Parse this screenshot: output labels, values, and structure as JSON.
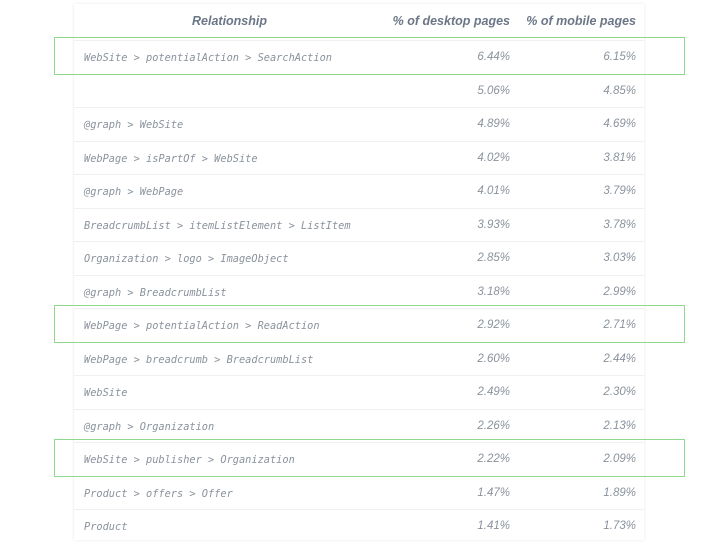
{
  "table": {
    "headers": {
      "relationship": "Relationship",
      "desktop": "% of desktop pages",
      "mobile": "% of mobile pages"
    },
    "rows": [
      {
        "relationship": "WebSite > potentialAction > SearchAction",
        "desktop": "6.44%",
        "mobile": "6.15%",
        "highlighted": true
      },
      {
        "relationship": "",
        "desktop": "5.06%",
        "mobile": "4.85%",
        "highlighted": false
      },
      {
        "relationship": "@graph > WebSite",
        "desktop": "4.89%",
        "mobile": "4.69%",
        "highlighted": false
      },
      {
        "relationship": "WebPage > isPartOf > WebSite",
        "desktop": "4.02%",
        "mobile": "3.81%",
        "highlighted": false
      },
      {
        "relationship": "@graph > WebPage",
        "desktop": "4.01%",
        "mobile": "3.79%",
        "highlighted": false
      },
      {
        "relationship": "BreadcrumbList > itemListElement > ListItem",
        "desktop": "3.93%",
        "mobile": "3.78%",
        "highlighted": false
      },
      {
        "relationship": "Organization > logo > ImageObject",
        "desktop": "2.85%",
        "mobile": "3.03%",
        "highlighted": false
      },
      {
        "relationship": "@graph > BreadcrumbList",
        "desktop": "3.18%",
        "mobile": "2.99%",
        "highlighted": false
      },
      {
        "relationship": "WebPage > potentialAction > ReadAction",
        "desktop": "2.92%",
        "mobile": "2.71%",
        "highlighted": true
      },
      {
        "relationship": "WebPage > breadcrumb > BreadcrumbList",
        "desktop": "2.60%",
        "mobile": "2.44%",
        "highlighted": false
      },
      {
        "relationship": "WebSite",
        "desktop": "2.49%",
        "mobile": "2.30%",
        "highlighted": false
      },
      {
        "relationship": "@graph > Organization",
        "desktop": "2.26%",
        "mobile": "2.13%",
        "highlighted": false
      },
      {
        "relationship": "WebSite > publisher > Organization",
        "desktop": "2.22%",
        "mobile": "2.09%",
        "highlighted": true
      },
      {
        "relationship": "Product > offers > Offer",
        "desktop": "1.47%",
        "mobile": "1.89%",
        "highlighted": false
      },
      {
        "relationship": "Product",
        "desktop": "1.41%",
        "mobile": "1.73%",
        "highlighted": false
      }
    ]
  },
  "colors": {
    "highlight_border": "#8fd98f",
    "header_text": "#6b7686",
    "cell_text": "#8a929c"
  }
}
